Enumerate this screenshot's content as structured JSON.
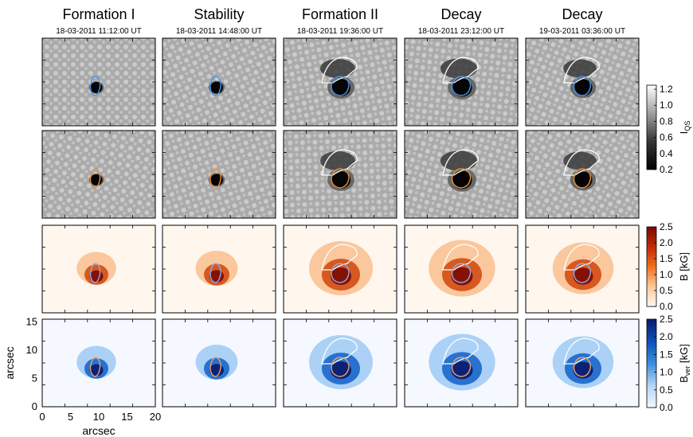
{
  "columns": [
    {
      "title": "Formation I",
      "timestamp": "18-03-2011 11:12:00 UT"
    },
    {
      "title": "Stability",
      "timestamp": "18-03-2011 14:48:00 UT"
    },
    {
      "title": "Formation II",
      "timestamp": "18-03-2011 19:36:00 UT"
    },
    {
      "title": "Decay",
      "timestamp": "18-03-2011 23:12:00 UT"
    },
    {
      "title": "Decay",
      "timestamp": "19-03-2011 03:36:00 UT"
    }
  ],
  "rows": [
    {
      "quantity": "intensity",
      "contour_color": "#4a90e2",
      "colormap": "gray"
    },
    {
      "quantity": "intensity",
      "contour_color": "#e8923a",
      "colormap": "gray"
    },
    {
      "quantity": "field_strength",
      "contour_color": "#8fa8e8",
      "colormap": "orange"
    },
    {
      "quantity": "vertical_field",
      "contour_color": "#e8a070",
      "colormap": "blue"
    }
  ],
  "colorbars": [
    {
      "label_main": "I",
      "label_sub": "QS",
      "ticks": [
        "1.2",
        "1.0",
        "0.8",
        "0.6",
        "0.4",
        "0.2"
      ],
      "range": [
        0.2,
        1.25
      ],
      "colormap": "gray"
    },
    {
      "label_main": "B [kG]",
      "label_sub": "",
      "ticks": [
        "2.5",
        "2.0",
        "1.5",
        "1.0",
        "0.5",
        "0.0"
      ],
      "range": [
        0.0,
        2.5
      ],
      "colormap": "orange"
    },
    {
      "label_main": "B",
      "label_sub": "ver",
      "label_suffix": " [kG]",
      "ticks": [
        "2.5",
        "2.0",
        "1.5",
        "1.0",
        "0.5",
        "0.0"
      ],
      "range": [
        0.0,
        2.5
      ],
      "colormap": "blue"
    }
  ],
  "axes": {
    "xlabel": "arcsec",
    "ylabel": "arcsec",
    "xticks": [
      "0",
      "5",
      "10",
      "15",
      "20"
    ],
    "yticks": [
      "15",
      "10",
      "5",
      "0"
    ],
    "xrange": [
      0,
      20
    ],
    "yrange": [
      0,
      15.5
    ]
  },
  "colors": {
    "orange_max": "#7a0a02",
    "blue_max": "#0a1a6a",
    "gray_min": "#000000",
    "gray_max": "#ffffff",
    "outer_contour": "#ffffff"
  }
}
